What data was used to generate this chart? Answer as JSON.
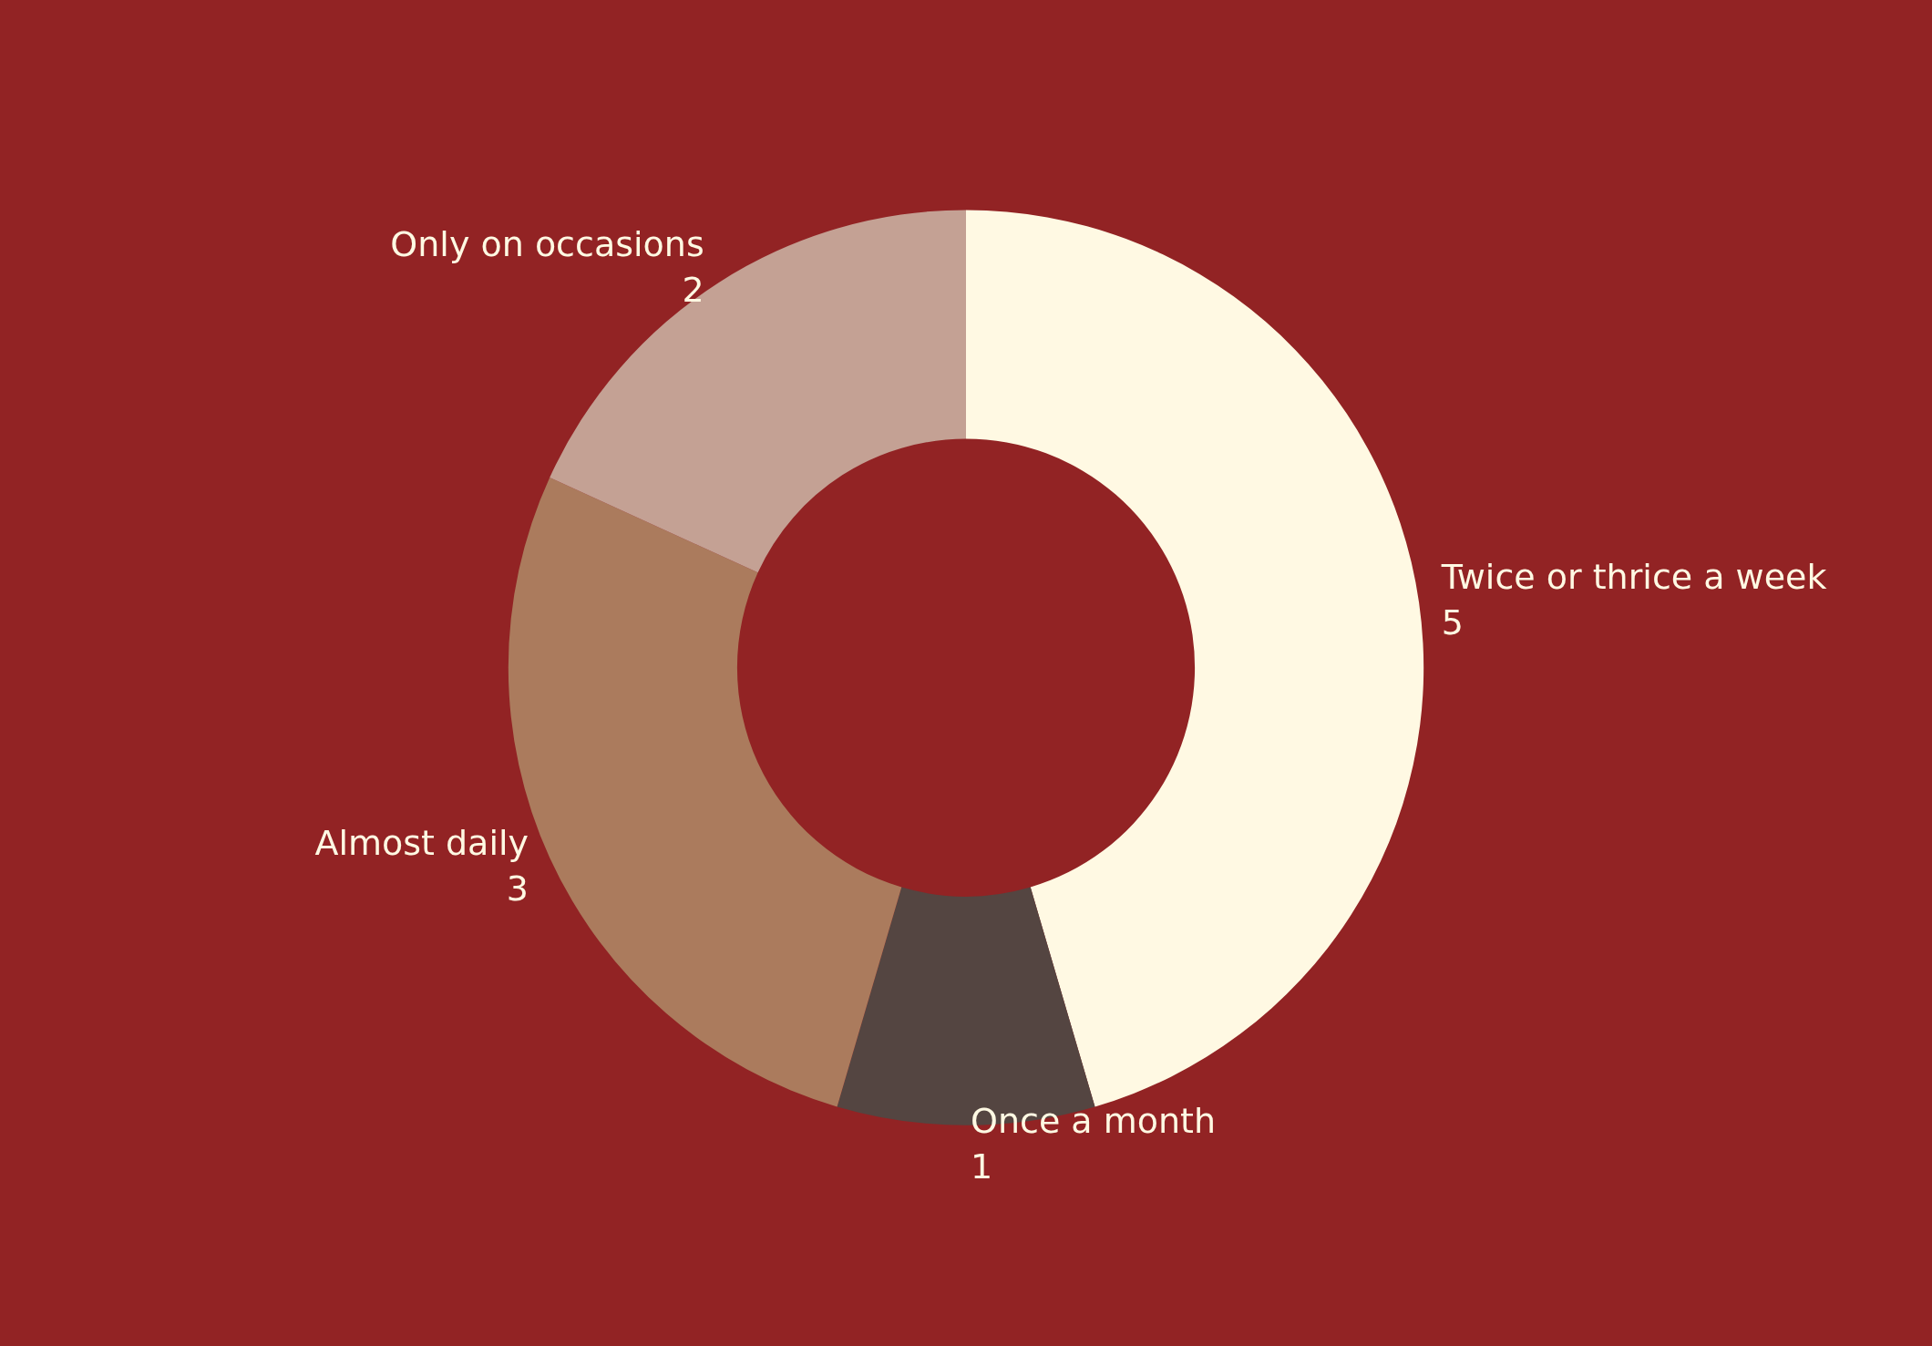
{
  "chart_data": {
    "type": "donut",
    "categories": [
      "Twice or thrice a week",
      "Once a month",
      "Almost daily",
      "Only on occasions"
    ],
    "values": [
      5,
      1,
      3,
      2
    ],
    "colors": [
      "#fff9e3",
      "#544541",
      "#ab7b5d",
      "#c4a194"
    ],
    "data_labels": true
  }
}
